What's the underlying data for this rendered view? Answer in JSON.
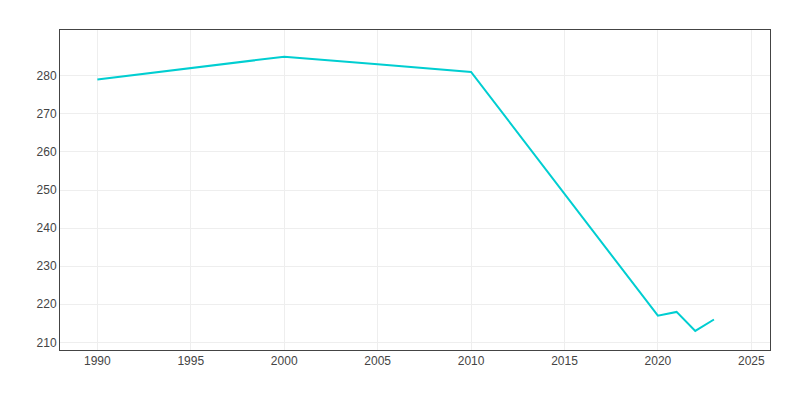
{
  "chart_data": {
    "type": "line",
    "x": [
      1990,
      1995,
      2000,
      2005,
      2010,
      2020,
      2021,
      2022,
      2023
    ],
    "values": [
      279,
      282,
      285,
      283,
      281,
      217,
      218,
      213,
      216
    ],
    "color": "#00CED1",
    "xlim": [
      1988,
      2026
    ],
    "ylim": [
      208,
      292
    ],
    "xticks": [
      1990,
      1995,
      2000,
      2005,
      2010,
      2015,
      2020,
      2025
    ],
    "yticks": [
      210,
      220,
      230,
      240,
      250,
      260,
      270,
      280
    ],
    "grid": true
  }
}
